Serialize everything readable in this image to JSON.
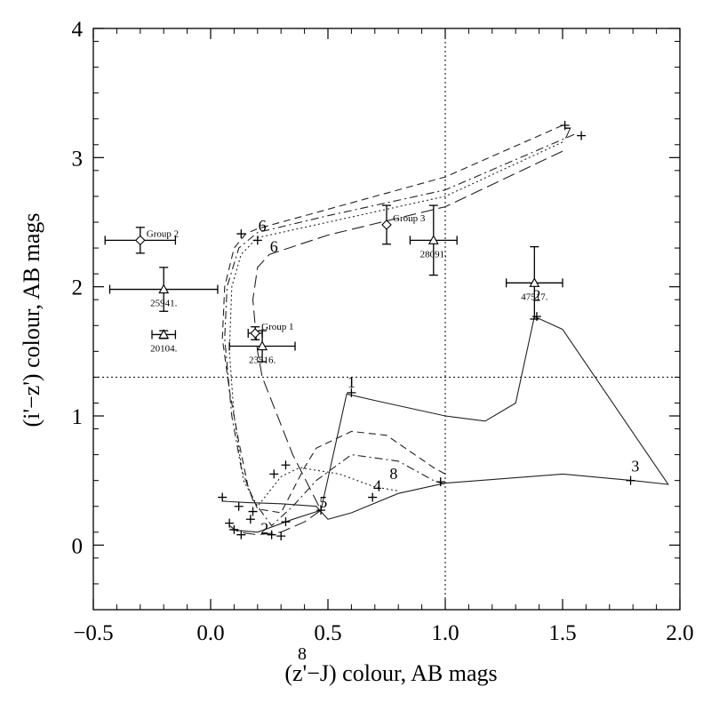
{
  "chart_data": {
    "type": "scatter",
    "xlabel": "(z'−J) colour, AB mags",
    "ylabel": "(i'−z') colour, AB mags",
    "xlim": [
      -0.5,
      2.0
    ],
    "ylim": [
      -0.5,
      4.0
    ],
    "xticks": [
      -0.5,
      0.0,
      0.5,
      1.0,
      1.5,
      2.0
    ],
    "xtick_labels": [
      "−0.5",
      "0.0",
      "0.5",
      "1.0",
      "1.5",
      "2.0"
    ],
    "yticks": [
      0,
      1,
      2,
      3,
      4
    ],
    "ytick_labels": [
      "0",
      "1",
      "2",
      "3",
      "4"
    ],
    "stray_label": "8",
    "reference_lines": {
      "x": 1.0,
      "y": 1.3
    },
    "points": [
      {
        "label": "Group 2",
        "marker": "diamond",
        "x": -0.3,
        "y": 2.36,
        "xerr": 0.15,
        "yerr": 0.1
      },
      {
        "label": "25941.",
        "marker": "triangle",
        "x": -0.2,
        "y": 1.98,
        "xerr": 0.23,
        "yerr": 0.17
      },
      {
        "label": "20104.",
        "marker": "triangle",
        "x": -0.2,
        "y": 1.63,
        "xerr": 0.05,
        "yerr": 0.03
      },
      {
        "label": "Group 1",
        "marker": "diamond",
        "x": 0.19,
        "y": 1.64,
        "xerr": 0.03,
        "yerr": 0.05
      },
      {
        "label": "23516.",
        "marker": "triangle",
        "x": 0.22,
        "y": 1.54,
        "xerr": 0.14,
        "yerr": 0.12
      },
      {
        "label": "Group 3",
        "marker": "diamond",
        "x": 0.75,
        "y": 2.48,
        "xerr": 0.0,
        "yerr": 0.15
      },
      {
        "label": "28091.",
        "marker": "triangle",
        "x": 0.95,
        "y": 2.36,
        "xerr": 0.1,
        "yerr": 0.27
      },
      {
        "label": "47517.",
        "marker": "triangle",
        "x": 1.38,
        "y": 2.03,
        "xerr": 0.12,
        "yerr": 0.28
      }
    ],
    "series": [
      {
        "style": "dashed",
        "points": [
          [
            1.5,
            3.25
          ],
          [
            1.0,
            2.85
          ],
          [
            0.5,
            2.6
          ],
          [
            0.2,
            2.45
          ],
          [
            0.15,
            2.41
          ],
          [
            0.1,
            2.3
          ],
          [
            0.06,
            2.0
          ],
          [
            0.05,
            1.6
          ],
          [
            0.08,
            1.2
          ],
          [
            0.12,
            0.8
          ],
          [
            0.16,
            0.45
          ],
          [
            0.2,
            0.28
          ],
          [
            0.3,
            0.25
          ],
          [
            0.4,
            0.6
          ],
          [
            0.45,
            0.75
          ],
          [
            0.6,
            0.88
          ],
          [
            0.75,
            0.85
          ],
          [
            0.95,
            0.6
          ],
          [
            1.0,
            0.55
          ]
        ]
      },
      {
        "style": "dashdot",
        "points": [
          [
            1.55,
            3.18
          ],
          [
            1.0,
            2.75
          ],
          [
            0.5,
            2.55
          ],
          [
            0.2,
            2.42
          ],
          [
            0.12,
            2.3
          ],
          [
            0.07,
            2.0
          ],
          [
            0.06,
            1.6
          ],
          [
            0.09,
            1.0
          ],
          [
            0.13,
            0.6
          ],
          [
            0.18,
            0.35
          ],
          [
            0.26,
            0.15
          ],
          [
            0.35,
            0.3
          ],
          [
            0.45,
            0.5
          ],
          [
            0.6,
            0.7
          ],
          [
            0.8,
            0.65
          ],
          [
            0.95,
            0.5
          ],
          [
            1.0,
            0.47
          ]
        ]
      },
      {
        "style": "dotted",
        "points": [
          [
            1.5,
            3.12
          ],
          [
            1.0,
            2.7
          ],
          [
            0.5,
            2.5
          ],
          [
            0.2,
            2.38
          ],
          [
            0.13,
            2.25
          ],
          [
            0.09,
            2.0
          ],
          [
            0.08,
            1.5
          ],
          [
            0.1,
            1.0
          ],
          [
            0.14,
            0.5
          ],
          [
            0.2,
            0.3
          ],
          [
            0.3,
            0.53
          ],
          [
            0.38,
            0.6
          ],
          [
            0.55,
            0.55
          ],
          [
            0.7,
            0.45
          ],
          [
            0.8,
            0.42
          ]
        ]
      },
      {
        "style": "longdash",
        "points": [
          [
            1.5,
            3.05
          ],
          [
            1.0,
            2.62
          ],
          [
            0.5,
            2.4
          ],
          [
            0.25,
            2.25
          ],
          [
            0.2,
            2.15
          ],
          [
            0.18,
            1.9
          ],
          [
            0.2,
            1.5
          ],
          [
            0.22,
            1.3
          ],
          [
            0.35,
            0.7
          ],
          [
            0.47,
            0.27
          ],
          [
            0.4,
            0.18
          ],
          [
            0.3,
            0.1
          ],
          [
            0.2,
            0.08
          ],
          [
            0.12,
            0.1
          ],
          [
            0.08,
            0.15
          ]
        ]
      },
      {
        "style": "solid",
        "points": [
          [
            0.08,
            0.12
          ],
          [
            0.2,
            0.1
          ],
          [
            0.35,
            0.2
          ],
          [
            0.47,
            0.27
          ],
          [
            0.58,
            1.17
          ],
          [
            0.7,
            1.12
          ],
          [
            1.0,
            1.0
          ],
          [
            1.17,
            0.96
          ],
          [
            1.3,
            1.1
          ],
          [
            1.38,
            1.77
          ],
          [
            1.5,
            1.67
          ],
          [
            1.95,
            0.47
          ],
          [
            1.8,
            0.5
          ],
          [
            1.5,
            0.55
          ],
          [
            1.0,
            0.48
          ],
          [
            0.8,
            0.4
          ],
          [
            0.6,
            0.25
          ],
          [
            0.5,
            0.2
          ],
          [
            0.45,
            0.3
          ],
          [
            0.3,
            0.32
          ],
          [
            0.15,
            0.33
          ],
          [
            0.05,
            0.34
          ]
        ]
      }
    ],
    "model_labels": [
      {
        "text": "2",
        "x": 1.39,
        "y": 1.89
      },
      {
        "text": "7",
        "x": 1.52,
        "y": 3.15
      },
      {
        "text": "6",
        "x": 0.22,
        "y": 2.43
      },
      {
        "text": "6",
        "x": 0.27,
        "y": 2.27
      },
      {
        "text": "1",
        "x": 0.6,
        "y": 1.22
      },
      {
        "text": "3",
        "x": 1.81,
        "y": 0.57
      },
      {
        "text": "4",
        "x": 0.71,
        "y": 0.42
      },
      {
        "text": "8",
        "x": 0.78,
        "y": 0.51
      },
      {
        "text": "5",
        "x": 0.48,
        "y": 0.29
      },
      {
        "text": "2",
        "x": 0.23,
        "y": 0.09
      }
    ],
    "plus_markers": [
      [
        1.51,
        3.25
      ],
      [
        1.58,
        3.17
      ],
      [
        0.13,
        2.41
      ],
      [
        0.2,
        2.36
      ],
      [
        1.39,
        1.77
      ],
      [
        1.79,
        0.5
      ],
      [
        0.6,
        1.18
      ],
      [
        0.69,
        0.37
      ],
      [
        0.47,
        0.27
      ],
      [
        0.27,
        0.55
      ],
      [
        0.32,
        0.62
      ],
      [
        0.05,
        0.37
      ],
      [
        0.18,
        0.26
      ],
      [
        0.32,
        0.18
      ],
      [
        0.17,
        0.2
      ],
      [
        0.12,
        0.3
      ],
      [
        0.08,
        0.17
      ],
      [
        0.1,
        0.12
      ],
      [
        0.13,
        0.08
      ],
      [
        0.26,
        0.08
      ],
      [
        0.3,
        0.07
      ],
      [
        0.98,
        0.49
      ]
    ]
  }
}
